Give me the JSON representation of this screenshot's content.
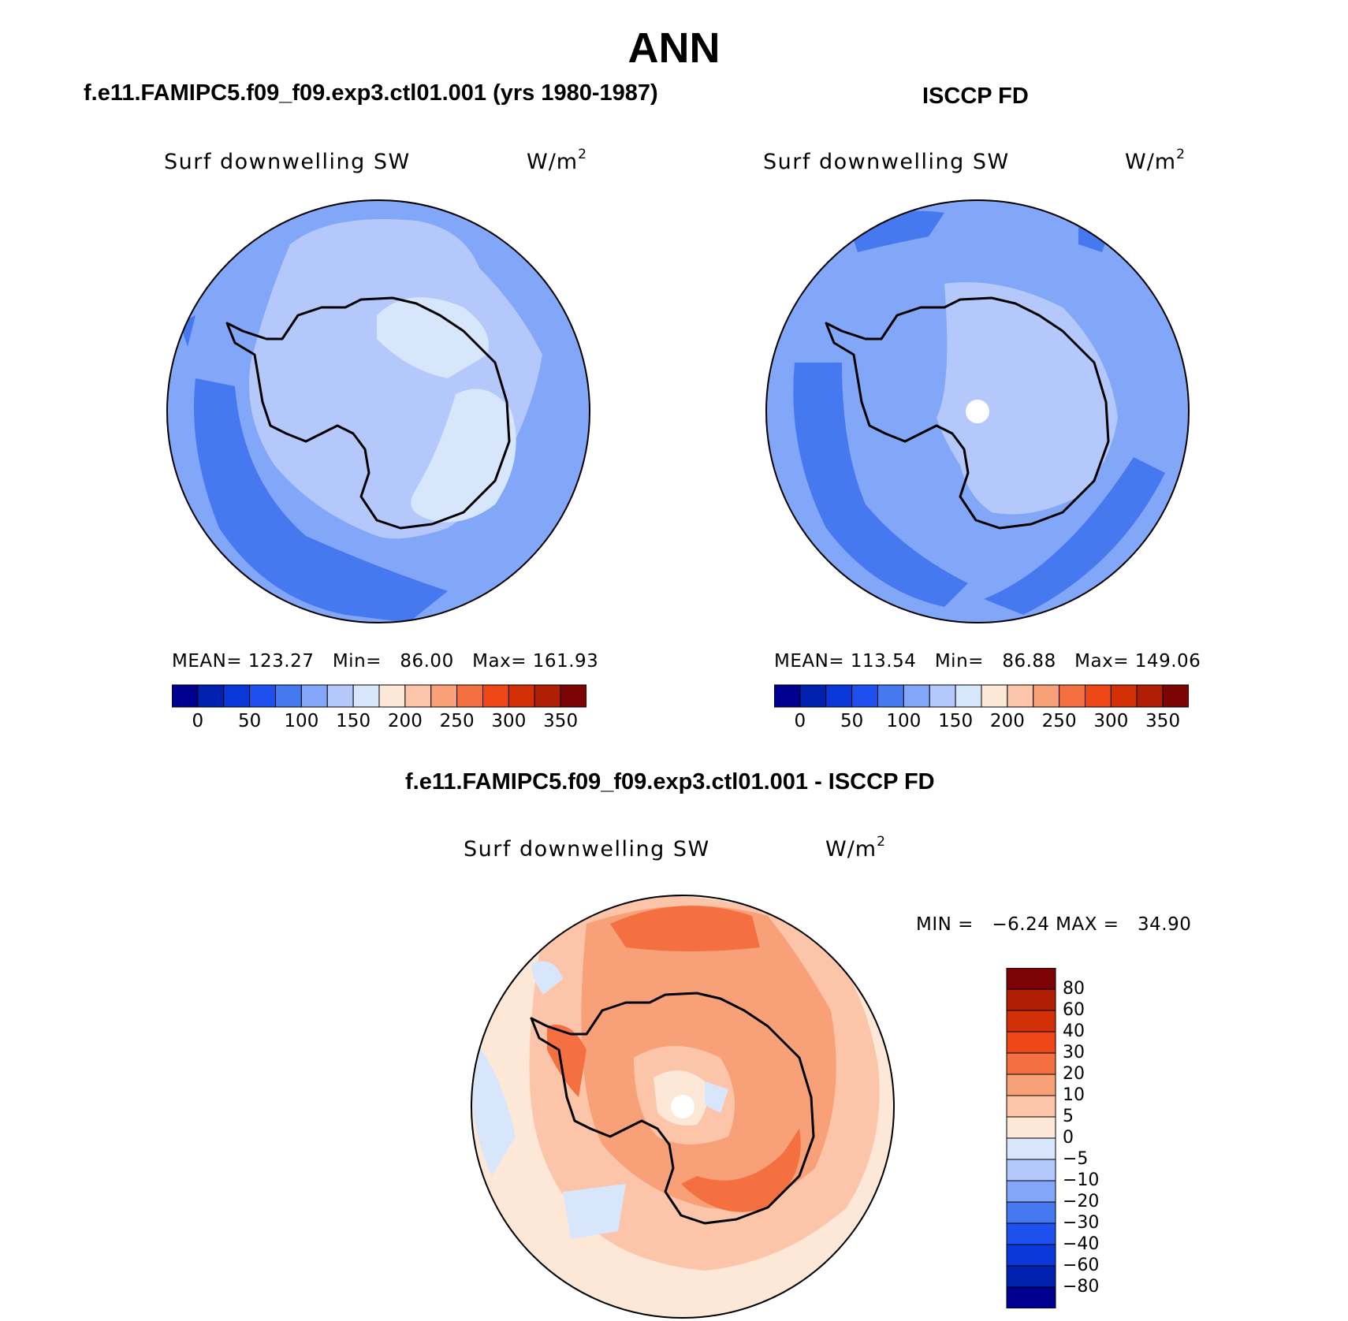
{
  "title": "ANN",
  "panels": {
    "model": {
      "case_title": "f.e11.FAMIPC5.f09_f09.exp3.ctl01.001 (yrs 1980-1987)",
      "plot_title": "Surf downwelling SW",
      "units_base": "W/m",
      "units_exp": "2",
      "stats": {
        "mean_label": "MEAN=",
        "mean": "123.27",
        "min_label": "Min=",
        "min": "86.00",
        "max_label": "Max=",
        "max": "161.93"
      },
      "map_description": "South polar stereographic, Antarctica coastline"
    },
    "obs": {
      "case_title": "ISCCP FD",
      "plot_title": "Surf downwelling SW",
      "units_base": "W/m",
      "units_exp": "2",
      "stats": {
        "mean_label": "MEAN=",
        "mean": "113.54",
        "min_label": "Min=",
        "min": "86.88",
        "max_label": "Max=",
        "max": "149.06"
      }
    },
    "diff": {
      "case_title": "f.e11.FAMIPC5.f09_f09.exp3.ctl01.001 - ISCCP FD",
      "plot_title": "Surf downwelling SW",
      "units_base": "W/m",
      "units_exp": "2",
      "stats": {
        "min_label": "MIN =",
        "min": "−6.24",
        "max_label": "MAX =",
        "max": "34.90"
      }
    }
  },
  "colorbars": {
    "absolute": {
      "colors": [
        "#000090",
        "#0020b0",
        "#0a38d8",
        "#1e50f0",
        "#4678f0",
        "#82a6f8",
        "#b4c8fc",
        "#d8e6fc",
        "#fde8d8",
        "#fcc4a8",
        "#f8a078",
        "#f57040",
        "#ee4818",
        "#d43008",
        "#b01e04",
        "#7c0404"
      ],
      "ticks": [
        "0",
        "50",
        "100",
        "150",
        "200",
        "250",
        "300",
        "350"
      ]
    },
    "difference": {
      "colors": [
        "#000090",
        "#0020b0",
        "#0a38d8",
        "#1e50f0",
        "#4678f0",
        "#82a6f8",
        "#b4c8fc",
        "#d8e6fc",
        "#fde8d8",
        "#fcc4a8",
        "#f8a078",
        "#f57040",
        "#ee4818",
        "#d43008",
        "#b01e04",
        "#7c0404"
      ],
      "ticks": [
        "−80",
        "−60",
        "−40",
        "−30",
        "−20",
        "−10",
        "−5",
        "0",
        "5",
        "10",
        "20",
        "30",
        "40",
        "60",
        "80"
      ]
    }
  },
  "map_colors": {
    "ocean_dark": "#4678f0",
    "ocean_mid": "#82a6f8",
    "light": "#b4c8fc",
    "lightest": "#d8e6fc",
    "diff_bg": "#fde8d8",
    "diff_1": "#fcc4a8",
    "diff_2": "#f8a078",
    "diff_3": "#f57040",
    "diff_neg": "#d8e6fc"
  },
  "chart_data": [
    {
      "type": "heatmap",
      "title": "Surf downwelling SW",
      "subtitle": "f.e11.FAMIPC5.f09_f09.exp3.ctl01.001 (yrs 1980-1987)",
      "units": "W/m2",
      "levels": [
        0,
        25,
        50,
        75,
        100,
        125,
        150,
        175,
        200,
        225,
        250,
        275,
        300,
        325,
        350
      ],
      "mean": 123.27,
      "min": 86.0,
      "max": 161.93
    },
    {
      "type": "heatmap",
      "title": "Surf downwelling SW",
      "subtitle": "ISCCP FD",
      "units": "W/m2",
      "levels": [
        0,
        25,
        50,
        75,
        100,
        125,
        150,
        175,
        200,
        225,
        250,
        275,
        300,
        325,
        350
      ],
      "mean": 113.54,
      "min": 86.88,
      "max": 149.06
    },
    {
      "type": "heatmap",
      "title": "Surf downwelling SW",
      "subtitle": "f.e11.FAMIPC5.f09_f09.exp3.ctl01.001 - ISCCP FD",
      "units": "W/m2",
      "levels": [
        -80,
        -60,
        -40,
        -30,
        -20,
        -10,
        -5,
        0,
        5,
        10,
        20,
        30,
        40,
        60,
        80
      ],
      "min": -6.24,
      "max": 34.9
    }
  ]
}
